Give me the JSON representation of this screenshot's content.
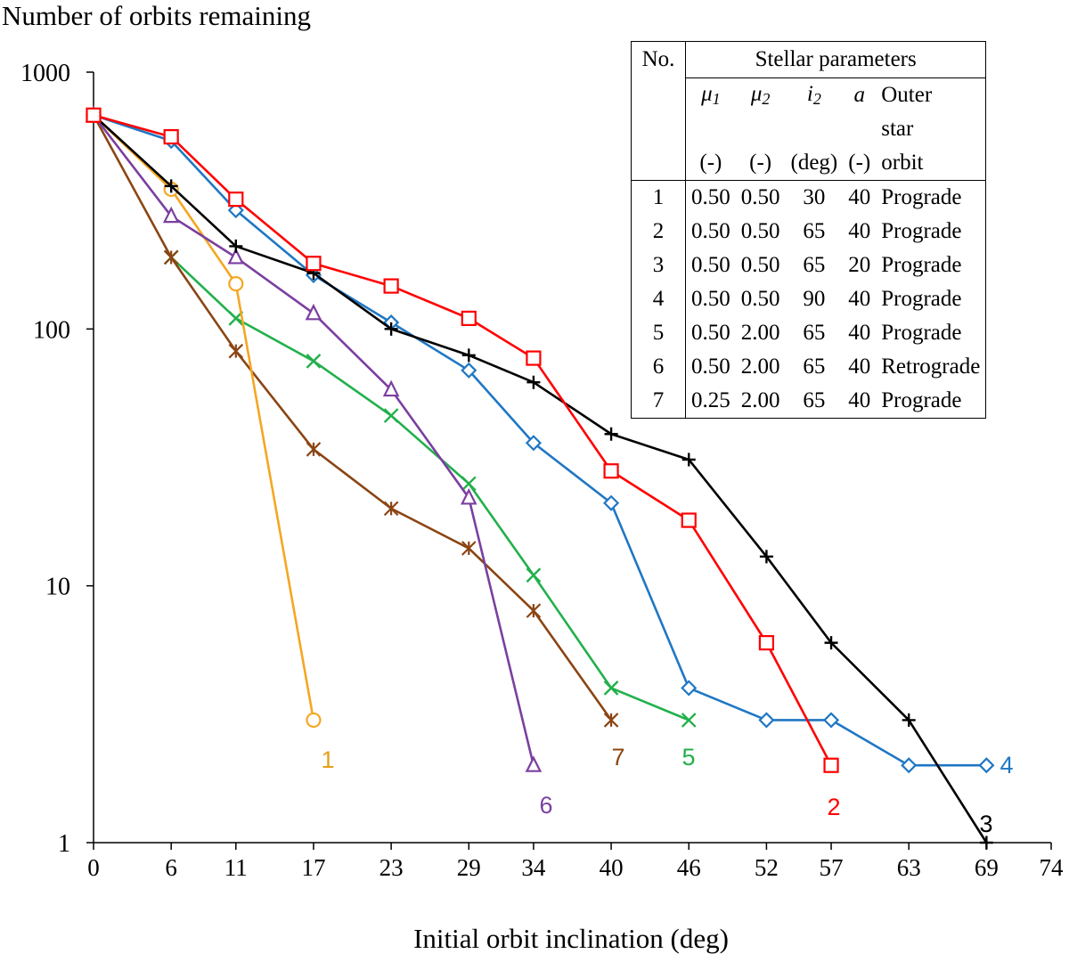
{
  "chart_data": {
    "type": "line",
    "title": "Number of orbits remaining",
    "xlabel": "Initial orbit inclination (deg)",
    "ylabel": "Number of orbits remaining",
    "yscale": "log",
    "ylim": [
      1,
      1000
    ],
    "xlim": [
      0,
      74
    ],
    "x_ticks": [
      0,
      6,
      11,
      17,
      23,
      29,
      34,
      40,
      46,
      52,
      57,
      63,
      69,
      74
    ],
    "y_ticks": [
      1,
      10,
      100,
      1000
    ],
    "y_tick_labels": [
      "1",
      "10",
      "100",
      "1000"
    ],
    "series": [
      {
        "name": "1",
        "color": "#f5a623",
        "marker": "circle",
        "x": [
          0,
          6,
          11,
          17
        ],
        "values": [
          680,
          350,
          150,
          3
        ]
      },
      {
        "name": "2",
        "color": "#ff0000",
        "marker": "square",
        "x": [
          0,
          6,
          11,
          17,
          23,
          29,
          34,
          40,
          46,
          52,
          57
        ],
        "values": [
          680,
          560,
          320,
          180,
          147,
          110,
          77,
          28,
          18,
          6,
          2
        ]
      },
      {
        "name": "3",
        "color": "#000000",
        "marker": "plus",
        "x": [
          0,
          6,
          11,
          17,
          23,
          29,
          34,
          40,
          46,
          52,
          57,
          63,
          69
        ],
        "values": [
          680,
          360,
          210,
          165,
          100,
          79,
          62,
          39,
          31,
          13,
          6,
          3,
          1
        ]
      },
      {
        "name": "4",
        "color": "#1f77c4",
        "marker": "diamond",
        "x": [
          0,
          6,
          11,
          17,
          23,
          29,
          34,
          40,
          46,
          52,
          57,
          63,
          69
        ],
        "values": [
          680,
          540,
          290,
          162,
          106,
          69,
          36,
          21,
          4,
          3,
          3,
          2,
          2
        ]
      },
      {
        "name": "5",
        "color": "#22b04b",
        "marker": "x",
        "x": [
          6,
          11,
          17,
          23,
          29,
          34,
          40,
          46
        ],
        "values": [
          190,
          110,
          75,
          46,
          25,
          11,
          4,
          3
        ]
      },
      {
        "name": "6",
        "color": "#7b3fa0",
        "marker": "triangle",
        "x": [
          0,
          6,
          11,
          17,
          23,
          29,
          34
        ],
        "values": [
          680,
          275,
          190,
          115,
          58,
          22,
          2
        ]
      },
      {
        "name": "7",
        "color": "#8b4513",
        "marker": "star",
        "x": [
          0,
          6,
          11,
          17,
          23,
          29,
          34,
          40
        ],
        "values": [
          680,
          190,
          82,
          34,
          20,
          14,
          8,
          3
        ]
      }
    ],
    "series_labels": [
      {
        "text": "1",
        "color": "#e6a11a"
      },
      {
        "text": "2",
        "color": "#ff0000"
      },
      {
        "text": "3",
        "color": "#000000"
      },
      {
        "text": "4",
        "color": "#1f77c4"
      },
      {
        "text": "5",
        "color": "#22b04b"
      },
      {
        "text": "6",
        "color": "#7b3fa0"
      },
      {
        "text": "7",
        "color": "#8b4513"
      }
    ]
  },
  "legend_table": {
    "col_no": "No.",
    "col_params": "Stellar parameters",
    "sym_mu": "μ",
    "sym_i": "i",
    "sym_a": "a",
    "sub_1": "1",
    "sub_2": "2",
    "outer_1": "Outer",
    "outer_2": "star",
    "outer_3": "orbit",
    "unit_mu1": "(-)",
    "unit_mu2": "(-)",
    "unit_i2": "(deg)",
    "unit_a": "(-)",
    "rows": [
      {
        "no": "1",
        "mu1": "0.50",
        "mu2": "0.50",
        "i2": "30",
        "a": "40",
        "orbit": "Prograde"
      },
      {
        "no": "2",
        "mu1": "0.50",
        "mu2": "0.50",
        "i2": "65",
        "a": "40",
        "orbit": "Prograde"
      },
      {
        "no": "3",
        "mu1": "0.50",
        "mu2": "0.50",
        "i2": "65",
        "a": "20",
        "orbit": "Prograde"
      },
      {
        "no": "4",
        "mu1": "0.50",
        "mu2": "0.50",
        "i2": "90",
        "a": "40",
        "orbit": "Prograde"
      },
      {
        "no": "5",
        "mu1": "0.50",
        "mu2": "2.00",
        "i2": "65",
        "a": "40",
        "orbit": "Prograde"
      },
      {
        "no": "6",
        "mu1": "0.50",
        "mu2": "2.00",
        "i2": "65",
        "a": "40",
        "orbit": "Retrograde"
      },
      {
        "no": "7",
        "mu1": "0.25",
        "mu2": "2.00",
        "i2": "65",
        "a": "40",
        "orbit": "Prograde"
      }
    ]
  }
}
